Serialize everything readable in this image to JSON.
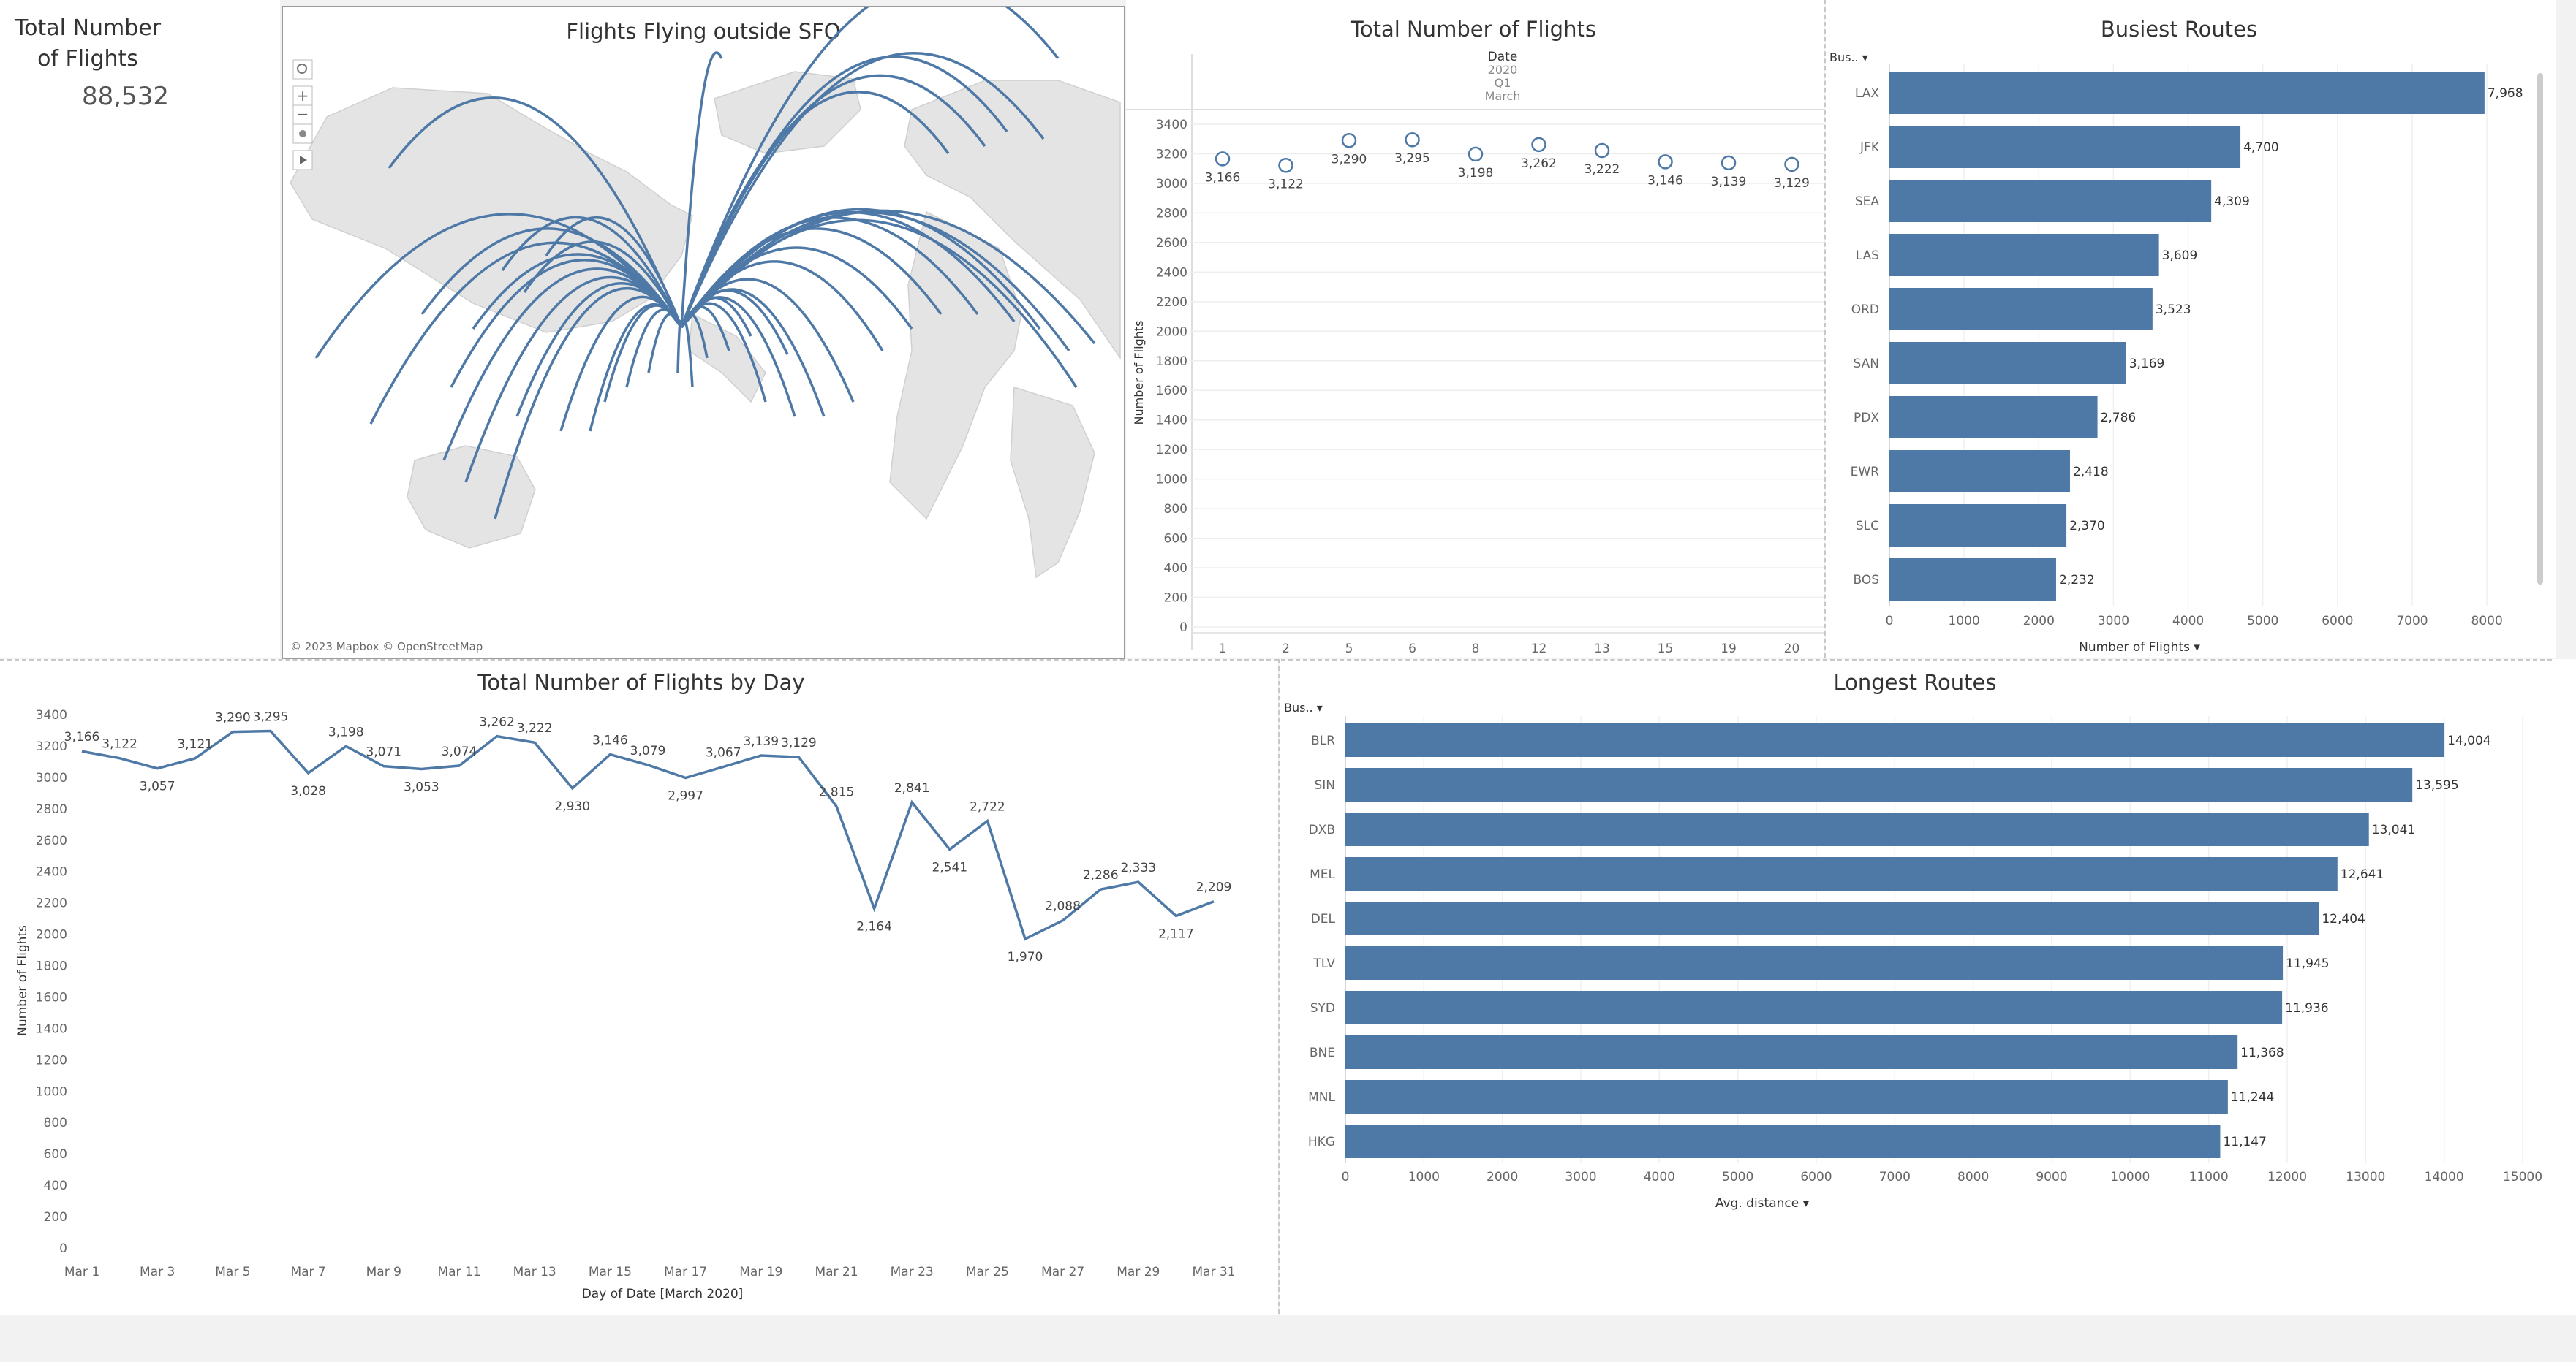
{
  "kpi": {
    "title_line1": "Total Number",
    "title_line2": "of Flights",
    "value": "88,532"
  },
  "map": {
    "title": "Flights Flying outside SFO",
    "attribution": "© 2023 Mapbox © OpenStreetMap",
    "tools": [
      "search-icon",
      "zoom-in-icon",
      "zoom-out-icon",
      "pin-icon",
      "play-icon"
    ]
  },
  "chart_data": [
    {
      "id": "kpi_by_date",
      "type": "scatter",
      "title": "Total Number of Flights",
      "header": [
        "Date",
        "2020",
        "Q1",
        "March"
      ],
      "x": [
        "1",
        "2",
        "5",
        "6",
        "8",
        "12",
        "13",
        "15",
        "19",
        "20"
      ],
      "values": [
        3166,
        3122,
        3290,
        3295,
        3198,
        3262,
        3222,
        3146,
        3139,
        3129
      ],
      "labels": [
        "3,166",
        "3,122",
        "3,290",
        "3,295",
        "3,198",
        "3,262",
        "3,222",
        "3,146",
        "3,139",
        "3,129"
      ],
      "ylabel": "Number of Flights",
      "ylim": [
        0,
        3400
      ],
      "yticks": [
        0,
        200,
        400,
        600,
        800,
        1000,
        1200,
        1400,
        1600,
        1800,
        2000,
        2200,
        2400,
        2600,
        2800,
        3000,
        3200,
        3400
      ],
      "grid": true
    },
    {
      "id": "busiest",
      "type": "bar",
      "title": "Busiest Routes",
      "column_header": "Bus..",
      "categories": [
        "LAX",
        "JFK",
        "SEA",
        "LAS",
        "ORD",
        "SAN",
        "PDX",
        "EWR",
        "SLC",
        "BOS"
      ],
      "values": [
        7968,
        4700,
        4309,
        3609,
        3523,
        3169,
        2786,
        2418,
        2370,
        2232
      ],
      "labels": [
        "7,968",
        "4,700",
        "4,309",
        "3,609",
        "3,523",
        "3,169",
        "2,786",
        "2,418",
        "2,370",
        "2,232"
      ],
      "xlabel": "Number of Flights",
      "xlim": [
        0,
        8400
      ],
      "xticks": [
        0,
        1000,
        2000,
        3000,
        4000,
        5000,
        6000,
        7000,
        8000
      ],
      "color": "#4e79a7"
    },
    {
      "id": "by_day",
      "type": "line",
      "title": "Total Number of Flights by Day",
      "x": [
        1,
        2,
        3,
        4,
        5,
        6,
        7,
        8,
        9,
        10,
        11,
        12,
        13,
        14,
        15,
        16,
        17,
        18,
        19,
        20,
        21,
        22,
        23,
        24,
        25,
        26,
        27,
        28,
        29,
        30,
        31
      ],
      "values": [
        3166,
        3122,
        3057,
        3121,
        3290,
        3295,
        3028,
        3198,
        3071,
        3053,
        3074,
        3262,
        3222,
        2930,
        3146,
        3079,
        2997,
        3067,
        3139,
        3129,
        2815,
        2164,
        2841,
        2541,
        2722,
        1970,
        2088,
        2286,
        2333,
        2117,
        2209
      ],
      "labels": [
        "3,166",
        "3,122",
        "3,057",
        "3,121",
        "3,290",
        "3,295",
        "3,028",
        "3,198",
        "3,071",
        "3,053",
        "3,074",
        "3,262",
        "3,222",
        "2,930",
        "3,146",
        "3,079",
        "2,997",
        "3,067",
        "3,139",
        "3,129",
        "2,815",
        "2,164",
        "2,841",
        "2,541",
        "2,722",
        "1,970",
        "2,088",
        "2,286",
        "2,333",
        "2,117",
        "2,209"
      ],
      "xticklabels": [
        "Mar 1",
        "Mar 3",
        "Mar 5",
        "Mar 7",
        "Mar 9",
        "Mar 11",
        "Mar 13",
        "Mar 15",
        "Mar 17",
        "Mar 19",
        "Mar 21",
        "Mar 23",
        "Mar 25",
        "Mar 27",
        "Mar 29",
        "Mar 31"
      ],
      "xlabel": "Day of Date [March 2020]",
      "ylabel": "Number of Flights",
      "ylim": [
        0,
        3400
      ],
      "yticks": [
        0,
        200,
        400,
        600,
        800,
        1000,
        1200,
        1400,
        1600,
        1800,
        2000,
        2200,
        2400,
        2600,
        2800,
        3000,
        3200,
        3400
      ],
      "color": "#4e79a7"
    },
    {
      "id": "longest",
      "type": "bar",
      "title": "Longest Routes",
      "column_header": "Bus..",
      "categories": [
        "BLR",
        "SIN",
        "DXB",
        "MEL",
        "DEL",
        "TLV",
        "SYD",
        "BNE",
        "MNL",
        "HKG"
      ],
      "values": [
        14004,
        13595,
        13041,
        12641,
        12404,
        11945,
        11936,
        11368,
        11244,
        11147
      ],
      "labels": [
        "14,004",
        "13,595",
        "13,041",
        "12,641",
        "12,404",
        "11,945",
        "11,936",
        "11,368",
        "11,244",
        "11,147"
      ],
      "xlabel": "Avg. distance",
      "xlim": [
        0,
        15000
      ],
      "xticks": [
        0,
        1000,
        2000,
        3000,
        4000,
        5000,
        6000,
        7000,
        8000,
        9000,
        10000,
        11000,
        12000,
        13000,
        14000,
        15000
      ],
      "color": "#4e79a7"
    }
  ]
}
